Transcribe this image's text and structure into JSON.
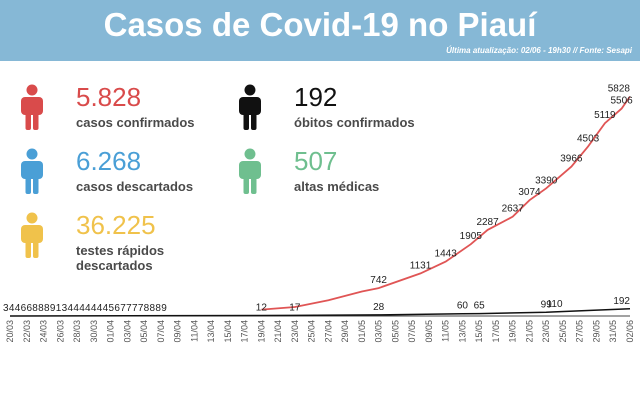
{
  "header": {
    "title": "Casos de Covid-19 no Piauí",
    "subtitle": "Última atualização: 02/06 - 19h30 // Fonte: Sesapi",
    "background": "#86b8d6"
  },
  "stats": [
    {
      "value": "5.828",
      "label": "casos confirmados",
      "color": "#d94b4b",
      "icon": "person-icon"
    },
    {
      "value": "192",
      "label": "óbitos confirmados",
      "color": "#111111",
      "icon": "person-icon"
    },
    {
      "value": "6.268",
      "label": "casos descartados",
      "color": "#4a9fd6",
      "icon": "person-icon"
    },
    {
      "value": "507",
      "label": "altas médicas",
      "color": "#6fbf8f",
      "icon": "person-icon"
    },
    {
      "value": "36.225",
      "label": "testes rápidos descartados",
      "color": "#f0c24b",
      "icon": "person-icon"
    }
  ],
  "chart_data": {
    "type": "line",
    "x_ticks": [
      "20/03",
      "22/03",
      "24/03",
      "26/03",
      "28/03",
      "30/03",
      "01/04",
      "03/04",
      "05/04",
      "07/04",
      "09/04",
      "11/04",
      "13/04",
      "15/04",
      "17/04",
      "19/04",
      "21/04",
      "23/04",
      "25/04",
      "27/04",
      "29/04",
      "01/05",
      "03/05",
      "05/05",
      "07/05",
      "09/05",
      "11/05",
      "13/05",
      "15/05",
      "17/05",
      "19/05",
      "21/05",
      "23/05",
      "25/05",
      "27/05",
      "29/05",
      "31/05",
      "02/06"
    ],
    "x_range": [
      "20/03",
      "02/06"
    ],
    "ylim": [
      0,
      6000
    ],
    "series": [
      {
        "color": "#e05555",
        "points": [
          {
            "x": "19/04",
            "y": 170
          },
          {
            "x": "23/04",
            "y": 240
          },
          {
            "x": "27/04",
            "y": 420
          },
          {
            "x": "01/05",
            "y": 650
          },
          {
            "x": "03/05",
            "y": 742
          },
          {
            "x": "08/05",
            "y": 1131
          },
          {
            "x": "11/05",
            "y": 1443
          },
          {
            "x": "14/05",
            "y": 1905
          },
          {
            "x": "16/05",
            "y": 2287
          },
          {
            "x": "19/05",
            "y": 2637
          },
          {
            "x": "21/05",
            "y": 3074
          },
          {
            "x": "23/05",
            "y": 3390
          },
          {
            "x": "26/05",
            "y": 3966
          },
          {
            "x": "28/05",
            "y": 4503
          },
          {
            "x": "30/05",
            "y": 5119
          },
          {
            "x": "01/06",
            "y": 5506
          },
          {
            "x": "02/06",
            "y": 5828
          }
        ],
        "labels": [
          {
            "x": "03/05",
            "y": 742,
            "text": "742"
          },
          {
            "x": "08/05",
            "y": 1131,
            "text": "1131"
          },
          {
            "x": "11/05",
            "y": 1443,
            "text": "1443"
          },
          {
            "x": "14/05",
            "y": 1905,
            "text": "1905"
          },
          {
            "x": "16/05",
            "y": 2287,
            "text": "2287"
          },
          {
            "x": "19/05",
            "y": 2637,
            "text": "2637"
          },
          {
            "x": "21/05",
            "y": 3074,
            "text": "3074"
          },
          {
            "x": "23/05",
            "y": 3390,
            "text": "3390"
          },
          {
            "x": "26/05",
            "y": 3966,
            "text": "3966"
          },
          {
            "x": "28/05",
            "y": 4503,
            "text": "4503"
          },
          {
            "x": "30/05",
            "y": 5119,
            "text": "5119"
          },
          {
            "x": "01/06",
            "y": 5506,
            "text": "5506"
          },
          {
            "x": "02/06",
            "y": 5828,
            "text": "5828"
          }
        ]
      },
      {
        "color": "#111111",
        "points": [
          {
            "x": "20/03",
            "y": 0
          },
          {
            "x": "19/04",
            "y": 12
          },
          {
            "x": "23/04",
            "y": 17
          },
          {
            "x": "03/05",
            "y": 28
          },
          {
            "x": "13/05",
            "y": 60
          },
          {
            "x": "15/05",
            "y": 65
          },
          {
            "x": "23/05",
            "y": 99
          },
          {
            "x": "24/05",
            "y": 110
          },
          {
            "x": "02/06",
            "y": 192
          }
        ],
        "labels": [
          {
            "x": "19/04",
            "y": 12,
            "text": "12"
          },
          {
            "x": "23/04",
            "y": 17,
            "text": "17"
          },
          {
            "x": "03/05",
            "y": 28,
            "text": "28"
          },
          {
            "x": "13/05",
            "y": 60,
            "text": "60"
          },
          {
            "x": "15/05",
            "y": 65,
            "text": "65"
          },
          {
            "x": "23/05",
            "y": 99,
            "text": "99"
          },
          {
            "x": "24/05",
            "y": 110,
            "text": "110"
          },
          {
            "x": "02/06",
            "y": 192,
            "text": "192"
          }
        ]
      }
    ],
    "early_values_text": "3446688891344444445677778889"
  }
}
